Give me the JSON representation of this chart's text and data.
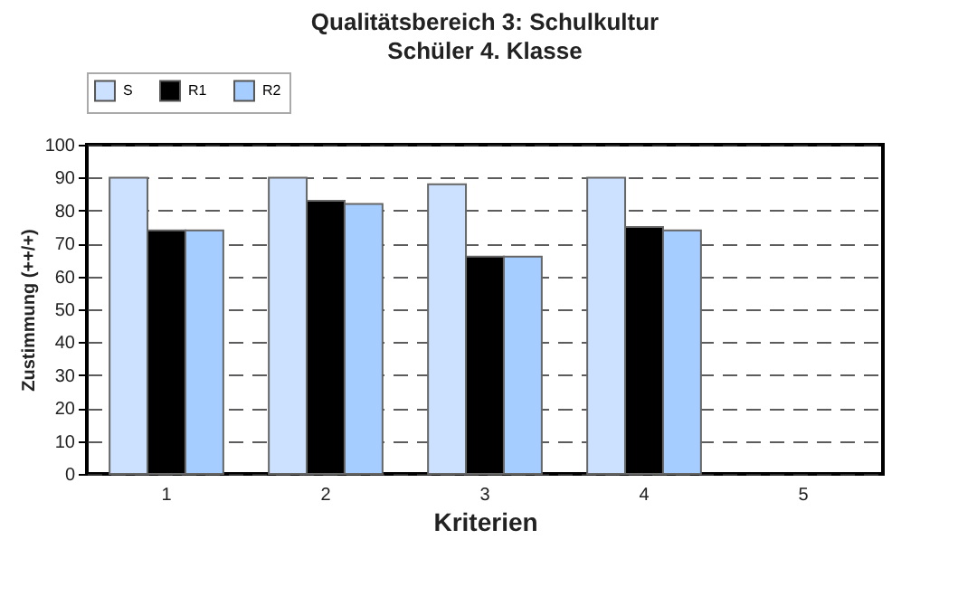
{
  "chart_data": {
    "type": "bar",
    "title": "Qualitätsbereich 3: Schulkultur",
    "subtitle": "Schüler 4. Klasse",
    "xlabel": "Kriterien",
    "ylabel": "Zustimmung (++/+)",
    "categories": [
      "1",
      "2",
      "3",
      "4",
      "5"
    ],
    "series": [
      {
        "name": "S",
        "color": "#cce0ff",
        "values": [
          90,
          90,
          88,
          90,
          null
        ]
      },
      {
        "name": "R1",
        "color": "#000000",
        "values": [
          74,
          83,
          66,
          75,
          null
        ]
      },
      {
        "name": "R2",
        "color": "#a6cdff",
        "values": [
          74,
          82,
          66,
          74,
          null
        ]
      }
    ],
    "ylim": [
      0,
      100
    ],
    "yticks": [
      0,
      10,
      20,
      30,
      40,
      50,
      60,
      70,
      80,
      90,
      100
    ],
    "grid": "y",
    "legend": "top left"
  }
}
